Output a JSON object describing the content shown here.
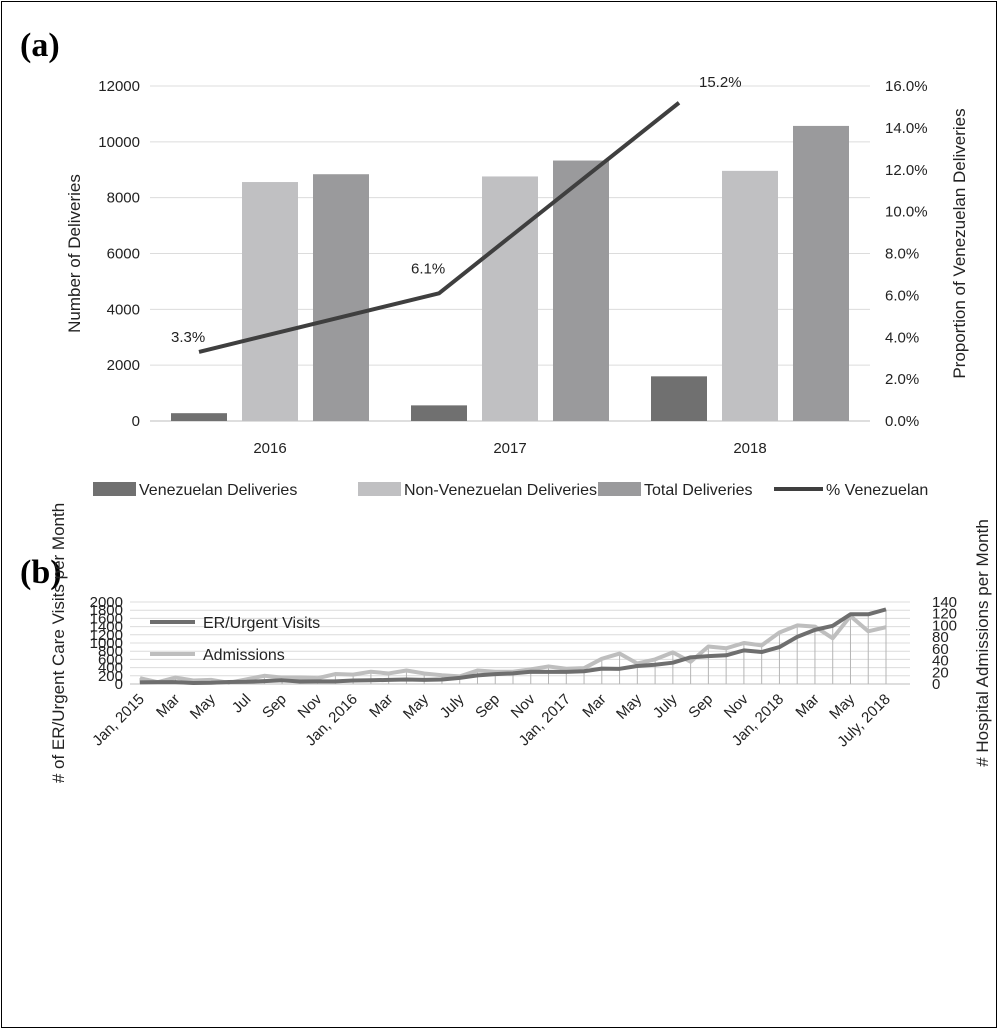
{
  "panel_a": {
    "label": "(a)",
    "chart_data": {
      "type": "bar",
      "categories": [
        "2016",
        "2017",
        "2018"
      ],
      "series": [
        {
          "name": "Venezuelan Deliveries",
          "values": [
            280,
            560,
            1600
          ],
          "color": "#707070"
        },
        {
          "name": "Non-Venezuelan Deliveries",
          "values": [
            8560,
            8760,
            8960
          ],
          "color": "#c0c0c2"
        },
        {
          "name": "Total Deliveries",
          "values": [
            8840,
            9330,
            10570
          ],
          "color": "#9a9a9c"
        }
      ],
      "line_series": {
        "name": "% Venezuelan",
        "values": [
          3.3,
          6.1,
          15.2
        ],
        "labels": [
          "3.3%",
          "6.1%",
          "15.2%"
        ],
        "color": "#3f3f3f"
      },
      "ylabel": "Number of Deliveries",
      "y2label": "Proportion of Venezuelan Deliveries",
      "ylim": [
        0,
        12000
      ],
      "y2lim": [
        0,
        16
      ],
      "yticks": [
        "0",
        "2000",
        "4000",
        "6000",
        "8000",
        "10000",
        "12000"
      ],
      "y2ticks": [
        "0.0%",
        "2.0%",
        "4.0%",
        "6.0%",
        "8.0%",
        "10.0%",
        "12.0%",
        "14.0%",
        "16.0%"
      ],
      "grid": true,
      "legend_position": "bottom"
    }
  },
  "panel_b": {
    "label": "(b)",
    "chart_data": {
      "type": "line",
      "x_count": 43,
      "x_tick_labels": [
        "Jan, 2015",
        "Mar",
        "May",
        "Jul",
        "Sep",
        "Nov",
        "Jan, 2016",
        "Mar",
        "May",
        "July",
        "Sep",
        "Nov",
        "Jan, 2017",
        "Mar",
        "May",
        "July",
        "Sep",
        "Nov",
        "Jan, 2018",
        "Mar",
        "May",
        "July, 2018"
      ],
      "series": [
        {
          "name": "ER/Urgent Visits",
          "axis": "left",
          "color": "#6e6e6e",
          "values": [
            40,
            45,
            45,
            25,
            30,
            50,
            55,
            70,
            90,
            60,
            65,
            65,
            85,
            90,
            100,
            110,
            100,
            110,
            150,
            210,
            240,
            260,
            300,
            295,
            295,
            310,
            375,
            370,
            440,
            470,
            520,
            650,
            680,
            700,
            820,
            780,
            900,
            1150,
            1320,
            1420,
            1700,
            1700,
            1820
          ]
        },
        {
          "name": "Admissions",
          "axis": "right",
          "color": "#bebebe",
          "values": [
            10,
            3,
            11,
            6,
            7,
            2,
            8,
            14,
            11,
            11,
            10,
            17,
            16,
            21,
            18,
            23,
            18,
            15,
            13,
            23,
            21,
            21,
            25,
            30,
            26,
            27,
            43,
            52,
            35,
            42,
            54,
            38,
            64,
            61,
            70,
            66,
            88,
            100,
            98,
            78,
            116,
            90,
            97
          ]
        }
      ],
      "ylabel": "# of ER/Urgent Care Visits per Month",
      "y2label": "# Hospital Admissions per Month",
      "ylim": [
        0,
        2000
      ],
      "y2lim": [
        0,
        140
      ],
      "yticks": [
        "0",
        "200",
        "400",
        "600",
        "800",
        "1000",
        "1200",
        "1400",
        "1600",
        "1800",
        "2000"
      ],
      "y2ticks": [
        "0",
        "20",
        "40",
        "60",
        "80",
        "100",
        "120",
        "140"
      ],
      "grid": true,
      "drop_lines": true,
      "legend_position": "top-left"
    }
  }
}
